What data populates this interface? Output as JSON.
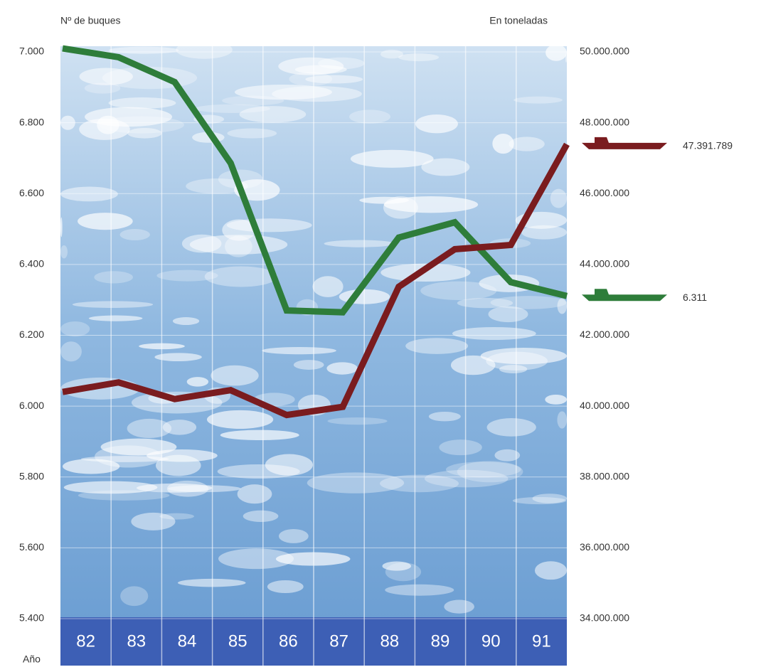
{
  "chart_data": {
    "type": "line",
    "y_label": "Nº de buques",
    "y2_label": "En toneladas",
    "x_label": "Año",
    "categories": [
      "82",
      "83",
      "84",
      "85",
      "86",
      "87",
      "88",
      "89",
      "90",
      "91"
    ],
    "series": [
      {
        "name": "Nº de buques",
        "color": "#2e7d3a",
        "axis": "y",
        "values": [
          7010,
          6985,
          6915,
          6686,
          6270,
          6265,
          6476,
          6519,
          6350,
          6311
        ],
        "value_labels": [
          null,
          null,
          null,
          null,
          null,
          null,
          null,
          null,
          null,
          "6.311"
        ]
      },
      {
        "name": "En toneladas",
        "color": "#7a1c1f",
        "axis": "y2",
        "values": [
          40400000,
          40670000,
          40200000,
          40450000,
          39750000,
          39980000,
          43370000,
          44430000,
          44550000,
          47391789
        ],
        "value_labels": [
          null,
          null,
          null,
          null,
          null,
          null,
          null,
          null,
          null,
          "47.391.789"
        ]
      }
    ],
    "ylim": [
      5400,
      7000
    ],
    "yticks": [
      {
        "value": 5400,
        "label": "5.400"
      },
      {
        "value": 5600,
        "label": "5.600"
      },
      {
        "value": 5800,
        "label": "5.800"
      },
      {
        "value": 6000,
        "label": "6.000"
      },
      {
        "value": 6200,
        "label": "6.200"
      },
      {
        "value": 6400,
        "label": "6.400"
      },
      {
        "value": 6600,
        "label": "6.600"
      },
      {
        "value": 6800,
        "label": "6.800"
      },
      {
        "value": 7000,
        "label": "7.000"
      }
    ],
    "y2lim": [
      34000000,
      50000000
    ],
    "y2ticks": [
      {
        "value": 34000000,
        "label": "34.000.000"
      },
      {
        "value": 36000000,
        "label": "36.000.000"
      },
      {
        "value": 38000000,
        "label": "38.000.000"
      },
      {
        "value": 40000000,
        "label": "40.000.000"
      },
      {
        "value": 42000000,
        "label": "42.000.000"
      },
      {
        "value": 44000000,
        "label": "44.000.000"
      },
      {
        "value": 46000000,
        "label": "46.000.000"
      },
      {
        "value": 48000000,
        "label": "48.000.000"
      },
      {
        "value": 50000000,
        "label": "50.000.000"
      }
    ],
    "grid": true
  }
}
